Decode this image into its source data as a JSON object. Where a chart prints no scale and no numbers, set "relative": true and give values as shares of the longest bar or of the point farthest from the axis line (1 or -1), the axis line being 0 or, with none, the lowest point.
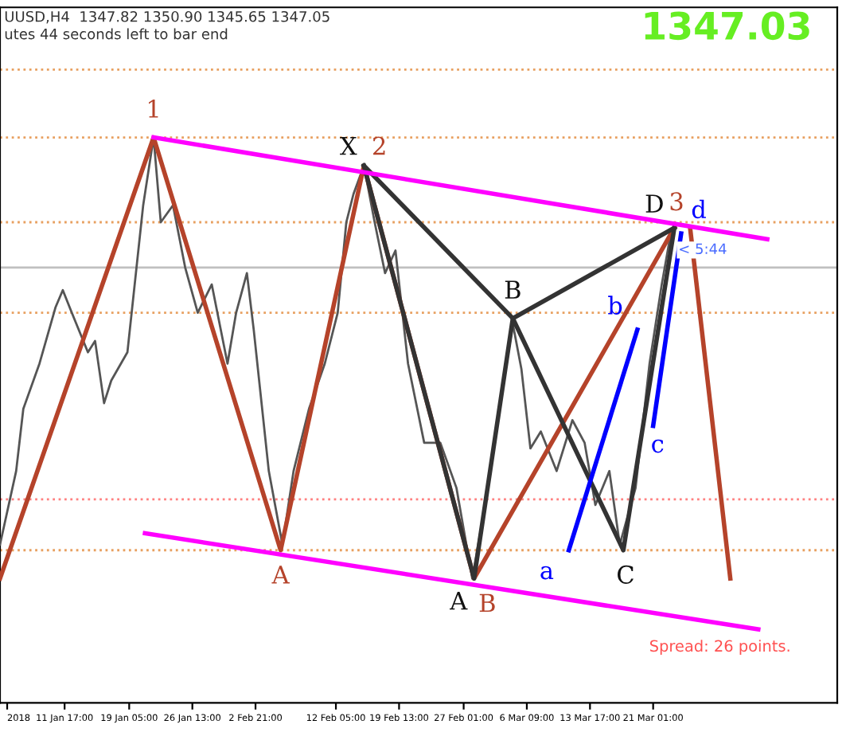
{
  "chart_data": {
    "type": "line",
    "relative": true,
    "ylim": [
      0,
      1.23
    ],
    "xlim": [
      "2018-01-04T05:00",
      "2018-04-11T10:00"
    ],
    "grid": false,
    "legend": false,
    "marker": "none",
    "line_style": "solid",
    "xticks": [
      {
        "value": "2018-01-05T01:00",
        "label": "2018"
      },
      {
        "value": "2018-01-11T17:00",
        "label": "11 Jan 17:00"
      },
      {
        "value": "2018-01-19T05:00",
        "label": "19 Jan 05:00"
      },
      {
        "value": "2018-01-26T13:00",
        "label": "26 Jan 13:00"
      },
      {
        "value": "2018-02-02T21:00",
        "label": "2 Feb 21:00"
      },
      {
        "value": "2018-02-12T05:00",
        "label": "12 Feb 05:00"
      },
      {
        "value": "2018-02-19T13:00",
        "label": "19 Feb 13:00"
      },
      {
        "value": "2018-02-27T01:00",
        "label": "27 Feb 01:00"
      },
      {
        "value": "2018-03-06T09:00",
        "label": "6 Mar 09:00"
      },
      {
        "value": "2018-03-13T17:00",
        "label": "13 Mar 17:00"
      },
      {
        "value": "2018-03-21T01:00",
        "label": "21 Mar 01:00"
      }
    ],
    "tick_labels": "x",
    "series": [
      {
        "color": "#555555",
        "x": [
          "2018-01-04T05:00",
          "2018-01-06T02:00",
          "2018-01-06T22:00",
          "2018-01-08T19:00",
          "2018-01-10T16:00",
          "2018-01-11T12:00",
          "2018-01-12T13:00",
          "2018-01-14T10:00",
          "2018-01-15T06:00",
          "2018-01-16T07:00",
          "2018-01-17T03:00",
          "2018-01-19T00:00",
          "2018-01-20T20:00",
          "2018-01-22T01:00",
          "2018-01-22T21:00",
          "2018-01-24T07:00",
          "2018-01-25T17:00",
          "2018-01-27T04:00",
          "2018-01-28T19:00",
          "2018-01-30T15:00",
          "2018-01-31T15:00",
          "2018-02-01T21:00",
          "2018-02-02T16:00",
          "2018-02-04T10:00",
          "2018-02-06T00:00",
          "2018-02-07T07:00",
          "2018-02-09T02:00",
          "2018-02-10T22:00",
          "2018-02-12T10:00",
          "2018-02-13T10:00",
          "2018-02-14T06:00",
          "2018-02-15T11:00",
          "2018-02-16T17:00",
          "2018-02-17T22:00",
          "2018-02-19T03:00",
          "2018-02-20T14:00",
          "2018-02-22T11:00",
          "2018-02-24T08:00",
          "2018-02-26T05:00",
          "2018-02-28T01:00",
          "2018-03-01T21:00",
          "2018-03-03T12:00",
          "2018-03-04T18:00",
          "2018-03-05T18:00",
          "2018-03-06T19:00",
          "2018-03-08T00:00",
          "2018-03-09T20:00",
          "2018-03-11T16:00",
          "2018-03-13T02:00",
          "2018-03-14T08:00",
          "2018-03-15T23:00",
          "2018-03-17T04:00",
          "2018-03-19T00:00",
          "2018-03-20T15:00",
          "2018-03-22T01:00",
          "2018-03-23T02:00",
          "2018-03-23T17:00"
        ],
        "values": [
          0.28,
          0.41,
          0.52,
          0.6,
          0.7,
          0.73,
          0.69,
          0.62,
          0.64,
          0.53,
          0.57,
          0.62,
          0.88,
          1.0,
          0.85,
          0.88,
          0.77,
          0.69,
          0.74,
          0.6,
          0.69,
          0.76,
          0.66,
          0.41,
          0.28,
          0.41,
          0.52,
          0.6,
          0.69,
          0.85,
          0.9,
          0.95,
          0.85,
          0.76,
          0.8,
          0.6,
          0.46,
          0.46,
          0.38,
          0.22,
          0.38,
          0.55,
          0.67,
          0.59,
          0.45,
          0.48,
          0.41,
          0.5,
          0.46,
          0.35,
          0.41,
          0.28,
          0.38,
          0.6,
          0.74,
          0.83,
          0.84
        ]
      },
      {
        "color": "#b5432a",
        "x": [
          "2018-01-04T05:00",
          "2018-01-22T01:00",
          "2018-02-05T19:00",
          "2018-02-15T11:00",
          "2018-02-28T06:00",
          "2018-03-23T12:00"
        ],
        "values": [
          0.22,
          1.0,
          0.27,
          0.95,
          0.22,
          0.84
        ]
      },
      {
        "color": "#b5432a",
        "x": [
          "2018-03-25T08:00",
          "2018-03-30T00:00"
        ],
        "values": [
          0.84,
          0.22
        ]
      },
      {
        "color": "#333333",
        "x": [
          "2018-02-15T11:00",
          "2018-02-28T06:00",
          "2018-03-04T18:00",
          "2018-03-17T14:00",
          "2018-03-23T12:00"
        ],
        "values": [
          0.95,
          0.22,
          0.68,
          0.27,
          0.84
        ]
      },
      {
        "color": "#333333",
        "x": [
          "2018-02-15T11:00",
          "2018-03-04T18:00"
        ],
        "values": [
          0.95,
          0.68
        ]
      },
      {
        "color": "#333333",
        "x": [
          "2018-03-04T18:00",
          "2018-03-23T12:00"
        ],
        "values": [
          0.68,
          0.84
        ]
      },
      {
        "color": "#0000ff",
        "x": [
          "2018-03-11T06:00",
          "2018-03-19T05:00"
        ],
        "values": [
          0.27,
          0.66
        ]
      },
      {
        "color": "#0000ff",
        "x": [
          "2018-03-21T01:00",
          "2018-03-24T07:00"
        ],
        "values": [
          0.49,
          0.83
        ]
      },
      {
        "color": "#ff00ff",
        "x": [
          "2018-01-22T01:00",
          "2018-04-03T07:00"
        ],
        "values": [
          1.0,
          0.82
        ]
      },
      {
        "color": "#ff00ff",
        "x": [
          "2018-01-21T01:00",
          "2018-04-02T06:00"
        ],
        "values": [
          0.3,
          0.13
        ]
      }
    ],
    "ref_lines": [
      {
        "axis": "y",
        "value": 1.12,
        "color": "#e8a060",
        "line_style": "dotted"
      },
      {
        "axis": "y",
        "value": 1.0,
        "color": "#e8a060",
        "line_style": "dotted"
      },
      {
        "axis": "y",
        "value": 0.85,
        "color": "#e8a060",
        "line_style": "dotted"
      },
      {
        "axis": "y",
        "value": 0.77,
        "color": "#c0c0c0",
        "line_style": "solid"
      },
      {
        "axis": "y",
        "value": 0.69,
        "color": "#e8a060",
        "line_style": "dotted"
      },
      {
        "axis": "y",
        "value": 0.36,
        "color": "#ff8080",
        "line_style": "dotted"
      },
      {
        "axis": "y",
        "value": 0.27,
        "color": "#e8a060",
        "line_style": "dotted"
      }
    ],
    "annotations": [
      "UUSD,H4  1347.82 1350.90 1345.65 1347.05",
      "utes 44 seconds left to bar end",
      "1347.03",
      "Spread: 26 points.",
      "< 5:44",
      "1",
      "X",
      "2",
      "A",
      "B",
      "D",
      "3",
      "d",
      "b",
      "c",
      "a",
      "C",
      "A",
      "B"
    ]
  }
}
